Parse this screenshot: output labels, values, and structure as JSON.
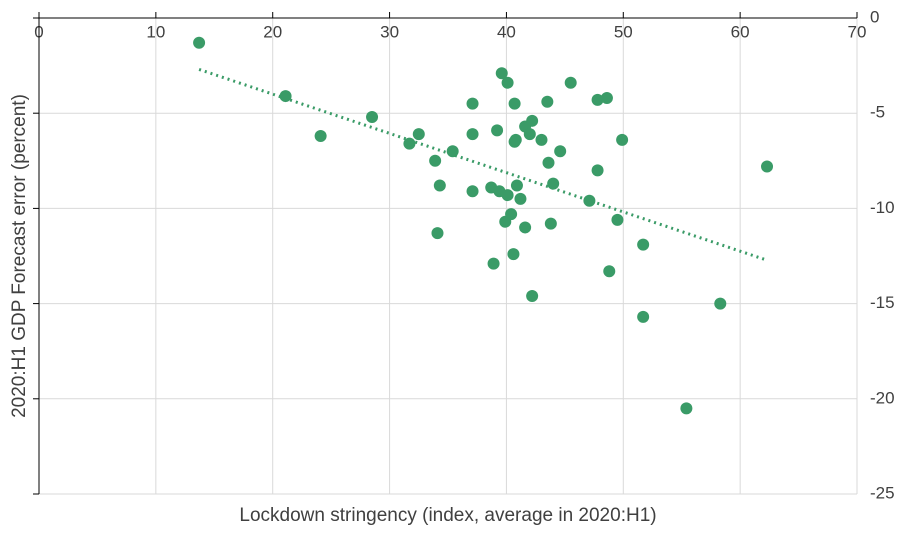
{
  "chart_data": {
    "type": "scatter",
    "x_label": "Lockdown stringency (index, average in 2020:H1)",
    "y_label": "2020:H1 GDP Forecast error (percent)",
    "x": [
      13.7,
      21.1,
      24.1,
      28.5,
      31.7,
      32.5,
      33.9,
      34.3,
      35.4,
      34.1,
      37.1,
      37.1,
      37.1,
      39.2,
      38.7,
      39.4,
      38.9,
      39.6,
      40.1,
      40.7,
      40.1,
      39.9,
      40.4,
      40.6,
      40.7,
      40.8,
      40.9,
      41.2,
      41.6,
      42.2,
      42.0,
      41.6,
      42.2,
      43.0,
      43.5,
      43.6,
      44.0,
      44.6,
      43.8,
      45.5,
      47.1,
      47.8,
      47.8,
      48.6,
      48.8,
      49.5,
      49.9,
      51.7,
      51.7,
      55.4,
      58.3,
      62.3
    ],
    "values": [
      -1.3,
      -4.1,
      -6.2,
      -5.2,
      -6.6,
      -6.1,
      -7.5,
      -8.8,
      -7.0,
      -11.3,
      -4.5,
      -6.1,
      -9.1,
      -5.9,
      -8.9,
      -9.1,
      -12.9,
      -2.9,
      -3.4,
      -4.5,
      -9.3,
      -10.7,
      -10.3,
      -12.4,
      -6.5,
      -6.4,
      -8.8,
      -9.5,
      -5.7,
      -5.4,
      -6.1,
      -11.0,
      -14.6,
      -6.4,
      -4.4,
      -7.6,
      -8.7,
      -7.0,
      -10.8,
      -3.4,
      -9.6,
      -8.0,
      -4.3,
      -4.2,
      -13.3,
      -10.6,
      -6.4,
      -11.9,
      -15.7,
      -20.5,
      -15.0,
      -7.8
    ],
    "color": "#3a9b67",
    "trendline": {
      "x": [
        13.7,
        62.2
      ],
      "values": [
        -2.7,
        -12.7
      ],
      "color": "#3a9b67"
    },
    "xlim": [
      0,
      70
    ],
    "xticks": [
      0,
      10,
      20,
      30,
      40,
      50,
      60,
      70
    ],
    "ylim": [
      -25,
      0
    ],
    "yticks": [
      0,
      -5,
      -10,
      -15,
      -20,
      -25
    ],
    "grid": true
  }
}
